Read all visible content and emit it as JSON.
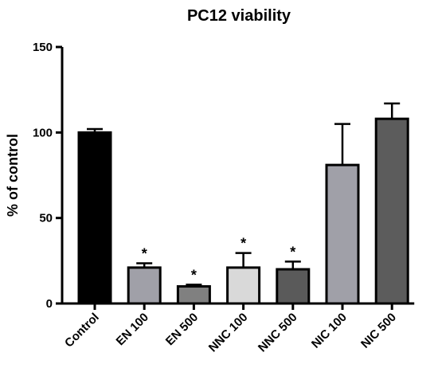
{
  "chart_data": {
    "type": "bar",
    "title": "PC12 viability",
    "xlabel": "",
    "ylabel": "% of control",
    "ylim": [
      0,
      150
    ],
    "yticks": [
      0,
      50,
      100,
      150
    ],
    "categories": [
      "Control",
      "EN 100",
      "EN 500",
      "NNC 100",
      "NNC 500",
      "NIC 100",
      "NIC 500"
    ],
    "values": [
      100,
      21,
      10,
      21,
      20,
      81,
      108
    ],
    "error": [
      2,
      2.5,
      1,
      8.5,
      4.5,
      24,
      9
    ],
    "annotations": [
      "",
      "*",
      "*",
      "*",
      "*",
      "",
      ""
    ],
    "colors": [
      "#000000",
      "#a0a0a8",
      "#808080",
      "#d9d9d9",
      "#5a5a5a",
      "#a0a0a8",
      "#5c5c5c"
    ],
    "grid": false,
    "legend": "none"
  }
}
